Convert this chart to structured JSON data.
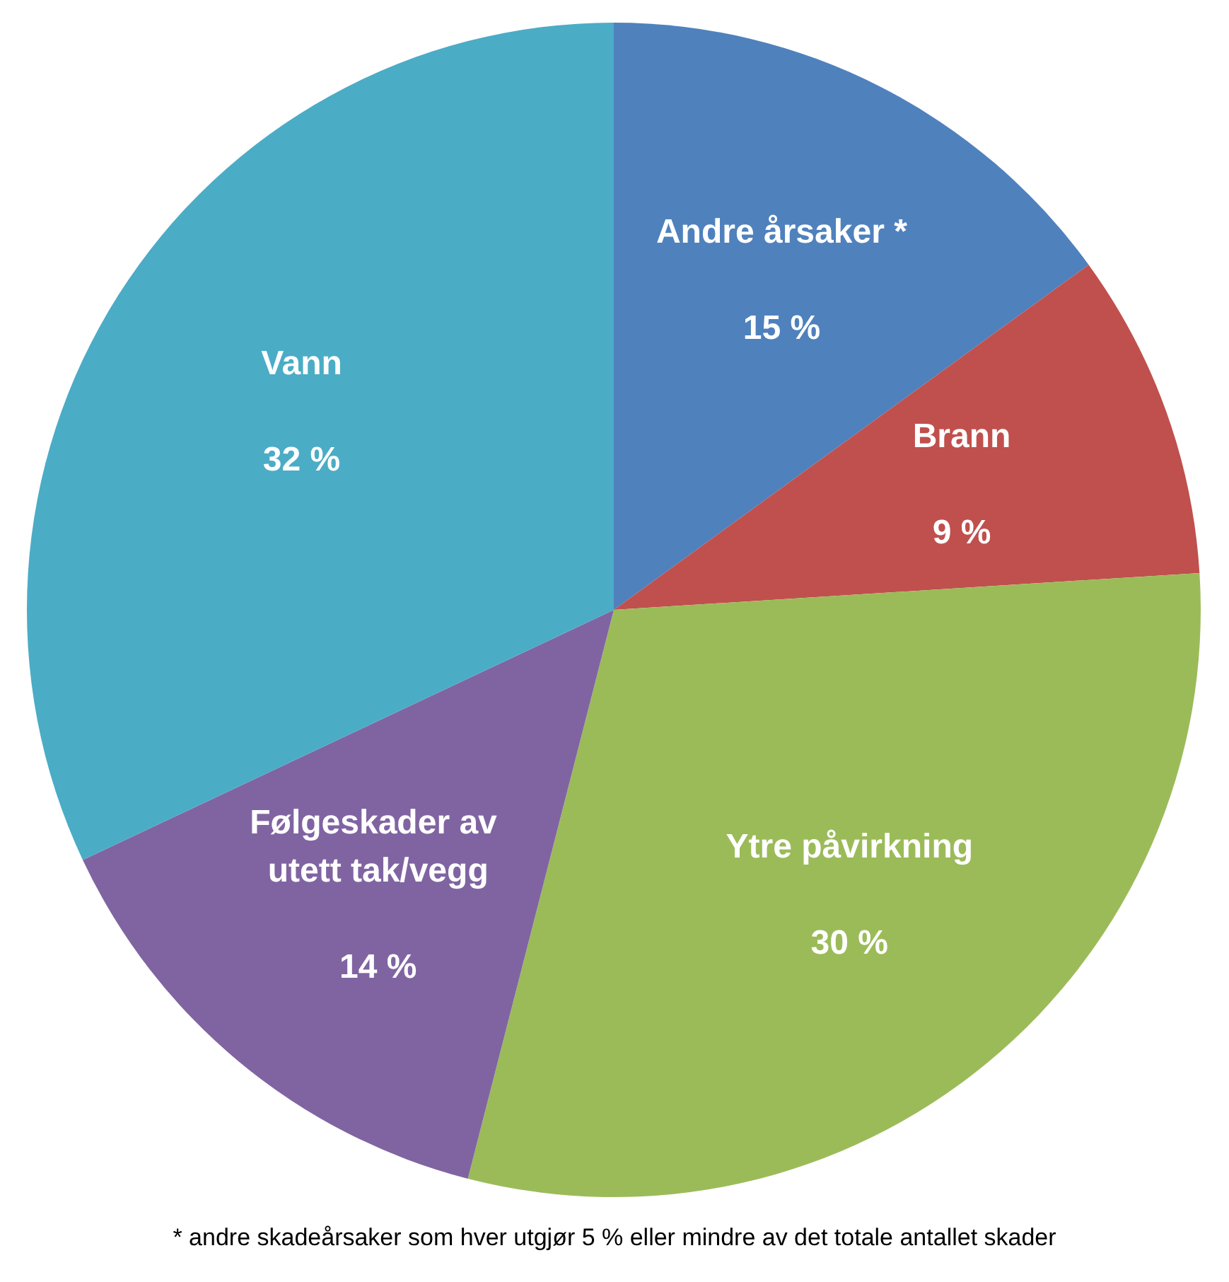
{
  "chart_data": {
    "type": "pie",
    "categories": [
      "Andre årsaker *",
      "Brann",
      "Ytre påvirkning",
      "Følgeskader av utett tak/vegg",
      "Vann"
    ],
    "values": [
      15,
      9,
      30,
      14,
      32
    ],
    "value_labels": [
      "15 %",
      "9 %",
      "30 %",
      "14 %",
      "32 %"
    ],
    "colors": [
      "#4f81bd",
      "#c0504d",
      "#9bbb59",
      "#8064a2",
      "#4bacc6"
    ],
    "annotations": [
      "* andre skadeårsaker som hver utgjør 5 % eller mindre av det totale antallet skader"
    ]
  }
}
